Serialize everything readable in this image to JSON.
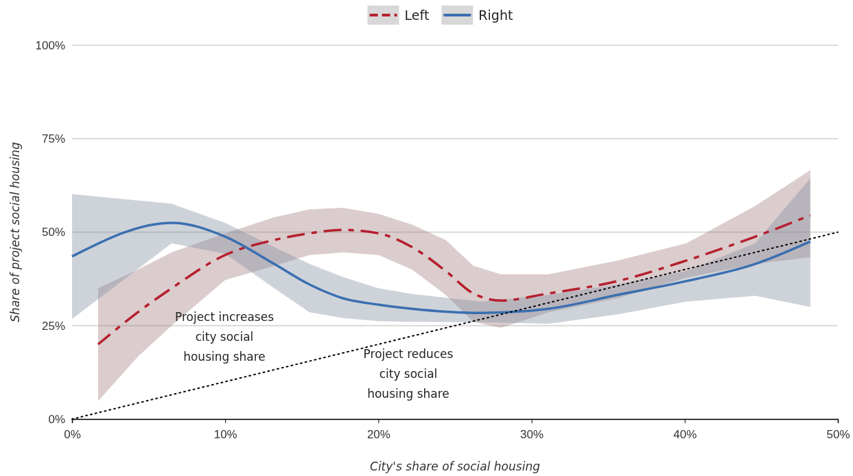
{
  "chart_data": {
    "type": "line",
    "xlabel": "City's share of social housing",
    "ylabel": "Share of project social housing",
    "xlim": [
      0,
      50
    ],
    "ylim": [
      0,
      100
    ],
    "xticks": [
      {
        "value": 0,
        "label": "0%"
      },
      {
        "value": 10,
        "label": "10%"
      },
      {
        "value": 20,
        "label": "20%"
      },
      {
        "value": 30,
        "label": "30%"
      },
      {
        "value": 40,
        "label": "40%"
      },
      {
        "value": 50,
        "label": "50%"
      }
    ],
    "yticks": [
      {
        "value": 0,
        "label": "0%"
      },
      {
        "value": 25,
        "label": "25%"
      },
      {
        "value": 50,
        "label": "50%"
      },
      {
        "value": 75,
        "label": "75%"
      },
      {
        "value": 100,
        "label": "100%"
      }
    ],
    "grid": "y",
    "legend": "top",
    "series": [
      {
        "name": "Left",
        "color": "#b5202e",
        "line_style": "dashed",
        "x": [
          1.7,
          4.3,
          6.5,
          10,
          13.2,
          15.5,
          17.7,
          20,
          22.2,
          24.4,
          26.2,
          28,
          31.1,
          35.6,
          40.1,
          44.6,
          48.2
        ],
        "values": [
          20,
          28.6,
          35,
          43.9,
          47.9,
          49.7,
          50.6,
          49.7,
          46,
          39.6,
          33.6,
          31.7,
          33.6,
          36.9,
          42.4,
          48.8,
          54.5
        ],
        "lower": [
          4.8,
          16.7,
          25,
          37.2,
          41,
          43.9,
          44.6,
          43.9,
          40,
          33.2,
          26,
          24.4,
          28.6,
          32.3,
          37.8,
          41.5,
          43.3
        ],
        "upper": [
          35,
          40,
          44.6,
          49.7,
          54,
          56.1,
          56.5,
          54.9,
          52,
          47.9,
          41,
          38.7,
          38.7,
          42.4,
          47,
          57,
          66.6
        ]
      },
      {
        "name": "Right",
        "color": "#3a6fb0",
        "line_style": "solid",
        "x": [
          0,
          6.5,
          10,
          13.2,
          15.5,
          17.7,
          20,
          22.2,
          26.7,
          31.1,
          35.6,
          40.1,
          44.6,
          48.2
        ],
        "values": [
          43.5,
          52.5,
          48.8,
          41.5,
          36,
          32.3,
          30.6,
          29.5,
          28.4,
          29.5,
          33.2,
          36.9,
          41.5,
          47.5
        ],
        "lower": [
          26.8,
          47,
          44.2,
          35,
          28.6,
          27,
          26.2,
          26,
          25.9,
          25.5,
          28,
          31.4,
          33,
          30
        ],
        "upper": [
          60.2,
          57.6,
          52.5,
          46,
          41.5,
          38,
          35,
          33.5,
          31.4,
          33.2,
          36,
          39.6,
          47,
          64.4
        ]
      },
      {
        "color": "#000000",
        "line_style": "dotted",
        "x": [
          0,
          50
        ],
        "values": [
          0,
          50
        ]
      }
    ],
    "annotations": [
      "Project increases\ncity social\nhousing share",
      "Project reduces\ncity social\nhousing share"
    ]
  }
}
